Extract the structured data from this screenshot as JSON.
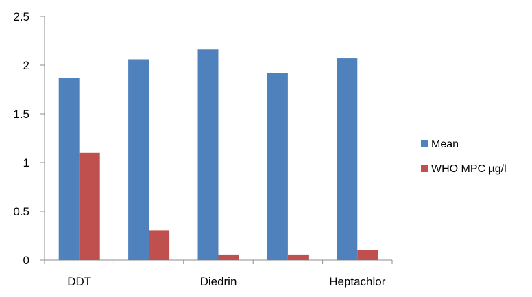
{
  "chart_data": {
    "type": "bar",
    "categories": [
      "DDT",
      "",
      "Diedrin",
      "",
      "Heptachlor"
    ],
    "series": [
      {
        "name": "Mean",
        "values": [
          1.87,
          2.06,
          2.16,
          1.92,
          2.07
        ],
        "color": "#4f81bd"
      },
      {
        "name": "WHO MPC µg/l",
        "values": [
          1.1,
          0.3,
          0.05,
          0.05,
          0.1
        ],
        "color": "#c0504d"
      }
    ],
    "ylim": [
      0,
      2.5
    ],
    "yticks": [
      "0",
      "0.5",
      "1",
      "1.5",
      "2",
      "2.5"
    ],
    "ytick_values": [
      0,
      0.5,
      1,
      1.5,
      2,
      2.5
    ],
    "grid": false,
    "legend_position": "right",
    "title": "",
    "xlabel": "",
    "ylabel": ""
  }
}
